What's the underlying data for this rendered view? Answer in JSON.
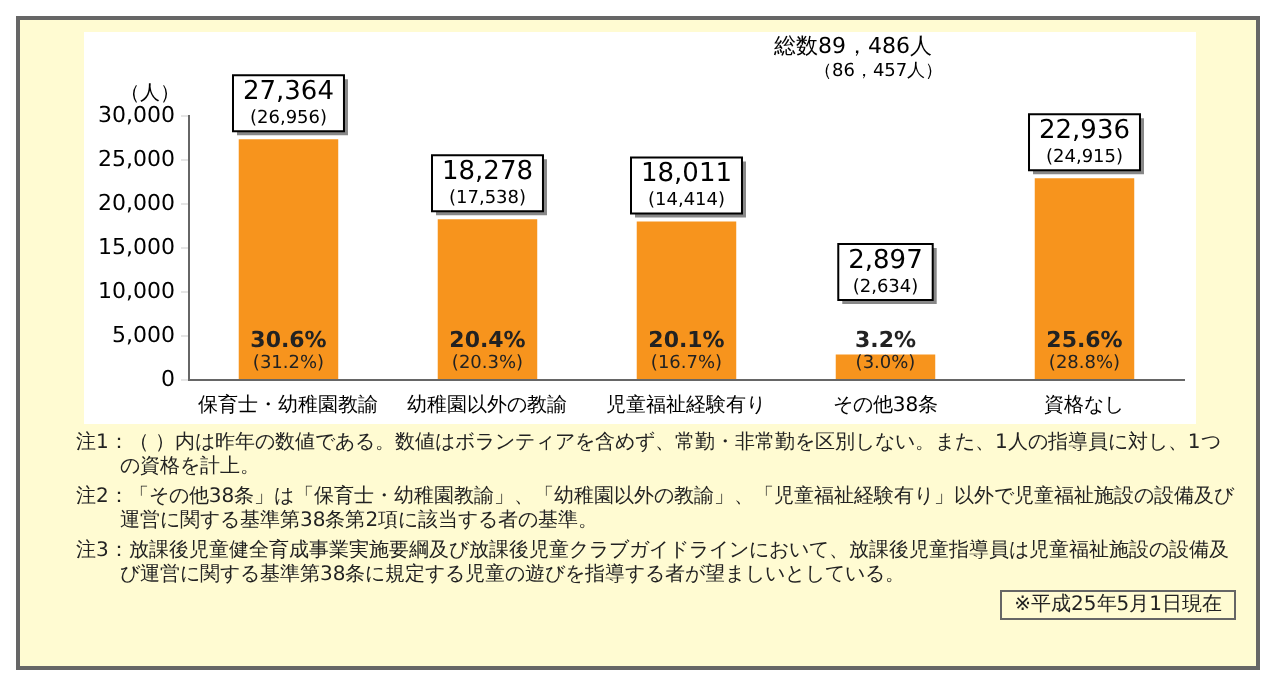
{
  "chart_data": {
    "type": "bar",
    "title": "総数89，486人",
    "subtitle": "（86，457人）",
    "ylabel": "（人）",
    "categories": [
      "保育士・幼稚園教諭",
      "幼稚園以外の教諭",
      "児童福祉経験有り",
      "その他38条",
      "資格なし"
    ],
    "values": [
      27364,
      18278,
      18011,
      2897,
      22936
    ],
    "color": "#f7941d",
    "value_labels": [
      "27,364\n(26,956)",
      "18,278\n(17,538)",
      "18,011\n(14,414)",
      "2,897\n(2,634)",
      "22,936\n(24,915)"
    ],
    "ylim": [
      0,
      30000
    ],
    "yticks": [
      {
        "value": 0,
        "label": "0"
      },
      {
        "value": 5000,
        "label": "5,000"
      },
      {
        "value": 10000,
        "label": "10,000"
      },
      {
        "value": 15000,
        "label": "15,000"
      },
      {
        "value": 20000,
        "label": "20,000"
      },
      {
        "value": 25000,
        "label": "25,000"
      },
      {
        "value": 30000,
        "label": "30,000"
      }
    ],
    "grid": false,
    "legend": false,
    "annotations": [
      "30.6%\n(31.2%)",
      "20.4%\n(20.3%)",
      "20.1%\n(16.7%)",
      "3.2%\n(3.0%)",
      "25.6%\n(28.8%)",
      "注1：（ ）内は昨年の数値である。数値はボランティアを含めず、常勤・非常勤を区別しない。また、1人の指導員に対し、1つの資格を計上。",
      "注2：「その他38条」は「保育士・幼稚園教諭」、「幼稚園以外の教諭」、「児童福祉経験有り」以外で児童福祉施設の設備及び運営に関する基準第38条第2項に該当する者の基準。",
      "注3：放課後児童健全育成事業実施要綱及び放課後児童クラブガイドラインにおいて、放課後児童指導員は児童福祉施設の設備及び運営に関する基準第38条に規定する児童の遊びを指導する者が望ましいとしている。",
      "※平成25年5月1日現在"
    ]
  }
}
